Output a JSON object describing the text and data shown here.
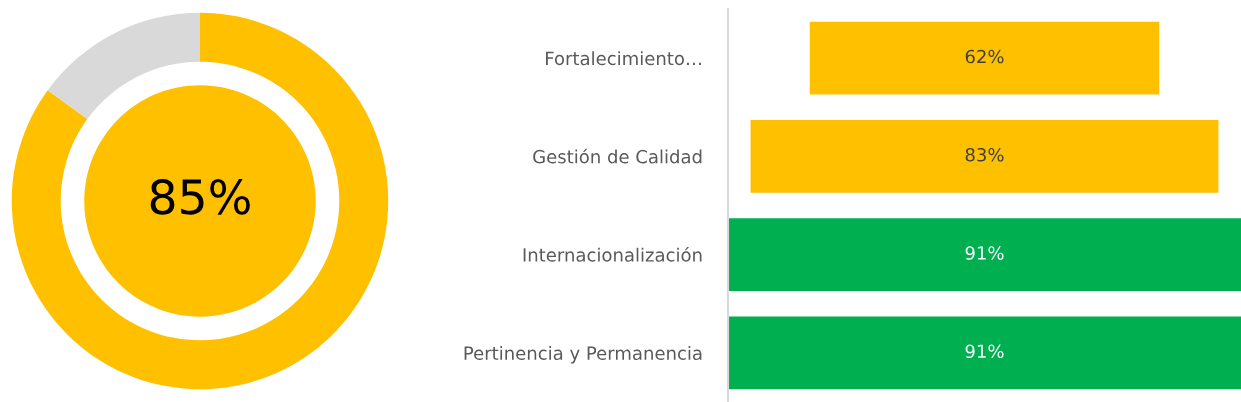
{
  "chart_data": [
    {
      "type": "donut",
      "categories": [
        null,
        null
      ],
      "values": [
        85,
        15
      ],
      "colors": [
        "#ffc000",
        "#d9d9d9"
      ],
      "annotations": [
        "85%"
      ]
    },
    {
      "type": "other",
      "categories": [
        "Fortalecimiento…",
        "Gestión de Calidad",
        "Internacionalización",
        "Pertinencia y Permanencia"
      ],
      "values": [
        62,
        83,
        91,
        91
      ],
      "colors": [
        "#ffc000",
        "#ffc000",
        "#00b050",
        "#00b050"
      ],
      "value_labels": [
        "62%",
        "83%",
        "91%",
        "91%"
      ]
    }
  ]
}
